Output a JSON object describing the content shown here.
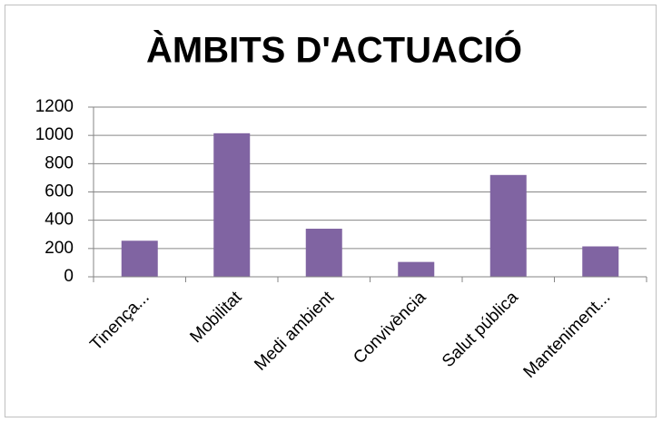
{
  "chart_data": {
    "type": "bar",
    "title": "ÀMBITS D'ACTUACIÓ",
    "categories": [
      "Tinença...",
      "Mobilitat",
      "Medi ambient",
      "Convivència",
      "Salut pública",
      "Manteniment..."
    ],
    "values": [
      255,
      1015,
      340,
      105,
      720,
      215
    ],
    "color": "#8064a2",
    "ylim": [
      0,
      1200
    ],
    "yticks": [
      0,
      200,
      400,
      600,
      800,
      1000,
      1200
    ],
    "grid": true
  }
}
